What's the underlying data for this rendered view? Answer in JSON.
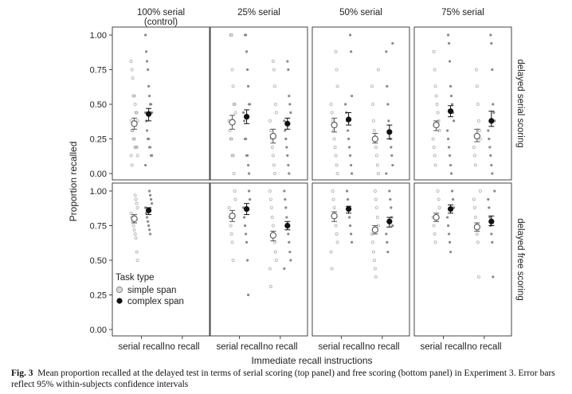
{
  "chart_data": {
    "type": "scatter",
    "ylabel": "Proportion recalled",
    "xlabel": "Immediate recall instructions",
    "ylim": [
      0.0,
      1.0
    ],
    "yticks": [
      "0.00",
      "0.25",
      "0.50",
      "0.75",
      "1.00"
    ],
    "categories": [
      "serial recall",
      "no recall"
    ],
    "columns": [
      "100% serial\n(control)",
      "25% serial",
      "50% serial",
      "75% serial"
    ],
    "rows": [
      "delayed serial scoring",
      "delayed free scoring"
    ],
    "legend": {
      "title": "Task type",
      "entries": [
        {
          "name": "simple span",
          "marker": "open-circle",
          "color": "#9a9a9a"
        },
        {
          "name": "complex span",
          "marker": "filled-circle",
          "color": "#111111"
        }
      ],
      "placement": "bottom-left of lower-left panel"
    },
    "grid": false,
    "series": [
      {
        "name": "simple span",
        "panel": [
          0,
          0
        ],
        "category": "serial recall",
        "mean": 0.36,
        "ci": [
          0.32,
          0.4
        ]
      },
      {
        "name": "complex span",
        "panel": [
          0,
          0
        ],
        "category": "serial recall",
        "mean": 0.43,
        "ci": [
          0.38,
          0.47
        ]
      },
      {
        "name": "simple span",
        "panel": [
          0,
          1
        ],
        "category": "serial recall",
        "mean": 0.37,
        "ci": [
          0.32,
          0.42
        ]
      },
      {
        "name": "complex span",
        "panel": [
          0,
          1
        ],
        "category": "serial recall",
        "mean": 0.41,
        "ci": [
          0.36,
          0.46
        ]
      },
      {
        "name": "simple span",
        "panel": [
          0,
          1
        ],
        "category": "no recall",
        "mean": 0.27,
        "ci": [
          0.22,
          0.32
        ]
      },
      {
        "name": "complex span",
        "panel": [
          0,
          1
        ],
        "category": "no recall",
        "mean": 0.36,
        "ci": [
          0.32,
          0.4
        ]
      },
      {
        "name": "simple span",
        "panel": [
          0,
          2
        ],
        "category": "serial recall",
        "mean": 0.35,
        "ci": [
          0.3,
          0.4
        ]
      },
      {
        "name": "complex span",
        "panel": [
          0,
          2
        ],
        "category": "serial recall",
        "mean": 0.39,
        "ci": [
          0.35,
          0.44
        ]
      },
      {
        "name": "simple span",
        "panel": [
          0,
          2
        ],
        "category": "no recall",
        "mean": 0.25,
        "ci": [
          0.22,
          0.29
        ]
      },
      {
        "name": "complex span",
        "panel": [
          0,
          2
        ],
        "category": "no recall",
        "mean": 0.3,
        "ci": [
          0.25,
          0.35
        ]
      },
      {
        "name": "simple span",
        "panel": [
          0,
          3
        ],
        "category": "serial recall",
        "mean": 0.35,
        "ci": [
          0.31,
          0.38
        ]
      },
      {
        "name": "complex span",
        "panel": [
          0,
          3
        ],
        "category": "serial recall",
        "mean": 0.45,
        "ci": [
          0.41,
          0.49
        ]
      },
      {
        "name": "simple span",
        "panel": [
          0,
          3
        ],
        "category": "no recall",
        "mean": 0.27,
        "ci": [
          0.23,
          0.32
        ]
      },
      {
        "name": "complex span",
        "panel": [
          0,
          3
        ],
        "category": "no recall",
        "mean": 0.38,
        "ci": [
          0.34,
          0.45
        ]
      },
      {
        "name": "simple span",
        "panel": [
          1,
          0
        ],
        "category": "serial recall",
        "mean": 0.8,
        "ci": [
          0.77,
          0.83
        ]
      },
      {
        "name": "complex span",
        "panel": [
          1,
          0
        ],
        "category": "serial recall",
        "mean": 0.86,
        "ci": [
          0.83,
          0.88
        ]
      },
      {
        "name": "simple span",
        "panel": [
          1,
          1
        ],
        "category": "serial recall",
        "mean": 0.82,
        "ci": [
          0.78,
          0.86
        ]
      },
      {
        "name": "complex span",
        "panel": [
          1,
          1
        ],
        "category": "serial recall",
        "mean": 0.87,
        "ci": [
          0.83,
          0.91
        ]
      },
      {
        "name": "simple span",
        "panel": [
          1,
          1
        ],
        "category": "no recall",
        "mean": 0.68,
        "ci": [
          0.64,
          0.71
        ]
      },
      {
        "name": "complex span",
        "panel": [
          1,
          1
        ],
        "category": "no recall",
        "mean": 0.75,
        "ci": [
          0.72,
          0.78
        ]
      },
      {
        "name": "simple span",
        "panel": [
          1,
          2
        ],
        "category": "serial recall",
        "mean": 0.82,
        "ci": [
          0.78,
          0.85
        ]
      },
      {
        "name": "complex span",
        "panel": [
          1,
          2
        ],
        "category": "serial recall",
        "mean": 0.87,
        "ci": [
          0.84,
          0.89
        ]
      },
      {
        "name": "simple span",
        "panel": [
          1,
          2
        ],
        "category": "no recall",
        "mean": 0.72,
        "ci": [
          0.69,
          0.75
        ]
      },
      {
        "name": "complex span",
        "panel": [
          1,
          2
        ],
        "category": "no recall",
        "mean": 0.78,
        "ci": [
          0.74,
          0.81
        ]
      },
      {
        "name": "simple span",
        "panel": [
          1,
          3
        ],
        "category": "serial recall",
        "mean": 0.81,
        "ci": [
          0.78,
          0.84
        ]
      },
      {
        "name": "complex span",
        "panel": [
          1,
          3
        ],
        "category": "serial recall",
        "mean": 0.87,
        "ci": [
          0.84,
          0.9
        ]
      },
      {
        "name": "simple span",
        "panel": [
          1,
          3
        ],
        "category": "no recall",
        "mean": 0.74,
        "ci": [
          0.71,
          0.77
        ]
      },
      {
        "name": "complex span",
        "panel": [
          1,
          3
        ],
        "category": "no recall",
        "mean": 0.78,
        "ci": [
          0.75,
          0.82
        ]
      }
    ],
    "raw_points": [
      {
        "panel": [
          0,
          0
        ],
        "category": "serial recall",
        "simple": [
          0.81,
          0.75,
          0.69,
          0.56,
          0.56,
          0.5,
          0.44,
          0.44,
          0.38,
          0.38,
          0.31,
          0.31,
          0.25,
          0.25,
          0.19,
          0.19,
          0.19,
          0.13,
          0.13,
          0.06
        ],
        "complex": [
          1.0,
          0.88,
          0.81,
          0.75,
          0.63,
          0.56,
          0.5,
          0.5,
          0.44,
          0.44,
          0.38,
          0.31,
          0.25,
          0.25,
          0.19,
          0.19,
          0.13,
          0.13,
          0.06
        ]
      },
      {
        "panel": [
          0,
          1
        ],
        "category": "serial recall",
        "simple": [
          1.0,
          1.0,
          0.75,
          0.63,
          0.5,
          0.5,
          0.44,
          0.38,
          0.31,
          0.25,
          0.25,
          0.13,
          0.13,
          0.0
        ],
        "complex": [
          1.0,
          1.0,
          0.88,
          0.75,
          0.63,
          0.5,
          0.5,
          0.44,
          0.38,
          0.25,
          0.25,
          0.13,
          0.13,
          0.06,
          0.0
        ]
      },
      {
        "panel": [
          0,
          1
        ],
        "category": "no recall",
        "simple": [
          0.81,
          0.75,
          0.63,
          0.5,
          0.44,
          0.38,
          0.31,
          0.25,
          0.19,
          0.13,
          0.06,
          0.0
        ],
        "complex": [
          0.81,
          0.75,
          0.56,
          0.5,
          0.44,
          0.38,
          0.31,
          0.25,
          0.19,
          0.13,
          0.06,
          0.0
        ]
      },
      {
        "panel": [
          0,
          2
        ],
        "category": "serial recall",
        "simple": [
          0.88,
          0.75,
          0.63,
          0.5,
          0.44,
          0.38,
          0.31,
          0.25,
          0.19,
          0.13,
          0.06,
          0.0
        ],
        "complex": [
          1.0,
          0.88,
          0.56,
          0.5,
          0.44,
          0.38,
          0.31,
          0.25,
          0.19,
          0.13,
          0.06,
          0.0
        ]
      },
      {
        "panel": [
          0,
          2
        ],
        "category": "no recall",
        "simple": [
          0.75,
          0.63,
          0.5,
          0.38,
          0.31,
          0.25,
          0.19,
          0.13,
          0.06,
          0.0
        ],
        "complex": [
          0.94,
          0.88,
          0.63,
          0.5,
          0.38,
          0.31,
          0.25,
          0.19,
          0.13,
          0.06,
          0.0
        ]
      },
      {
        "panel": [
          0,
          3
        ],
        "category": "serial recall",
        "simple": [
          0.88,
          0.75,
          0.63,
          0.56,
          0.5,
          0.44,
          0.38,
          0.31,
          0.25,
          0.19,
          0.13,
          0.06
        ],
        "complex": [
          1.0,
          0.94,
          0.81,
          0.63,
          0.56,
          0.5,
          0.44,
          0.38,
          0.31,
          0.25,
          0.19,
          0.13,
          0.06,
          0.0
        ]
      },
      {
        "panel": [
          0,
          3
        ],
        "category": "no recall",
        "simple": [
          0.75,
          0.63,
          0.5,
          0.38,
          0.31,
          0.25,
          0.19,
          0.13,
          0.06
        ],
        "complex": [
          1.0,
          0.94,
          0.75,
          0.5,
          0.44,
          0.38,
          0.31,
          0.25,
          0.19,
          0.13,
          0.06,
          0.0
        ]
      },
      {
        "panel": [
          1,
          0
        ],
        "category": "serial recall",
        "simple": [
          0.97,
          0.94,
          0.91,
          0.88,
          0.84,
          0.81,
          0.78,
          0.75,
          0.72,
          0.69,
          0.66,
          0.56,
          0.5
        ],
        "complex": [
          1.0,
          0.97,
          0.94,
          0.91,
          0.88,
          0.84,
          0.81,
          0.78,
          0.75,
          0.72,
          0.69
        ]
      },
      {
        "panel": [
          1,
          1
        ],
        "category": "serial recall",
        "simple": [
          1.0,
          0.94,
          0.88,
          0.81,
          0.75,
          0.69,
          0.63,
          0.5
        ],
        "complex": [
          1.0,
          0.94,
          0.88,
          0.81,
          0.75,
          0.69,
          0.63,
          0.5,
          0.25
        ]
      },
      {
        "panel": [
          1,
          1
        ],
        "category": "no recall",
        "simple": [
          1.0,
          0.94,
          0.88,
          0.81,
          0.75,
          0.69,
          0.63,
          0.56,
          0.5,
          0.44,
          0.31
        ],
        "complex": [
          1.0,
          0.94,
          0.88,
          0.81,
          0.75,
          0.69,
          0.63,
          0.56,
          0.5,
          0.44
        ]
      },
      {
        "panel": [
          1,
          2
        ],
        "category": "serial recall",
        "simple": [
          1.0,
          0.94,
          0.88,
          0.81,
          0.75,
          0.69,
          0.63,
          0.56,
          0.44
        ],
        "complex": [
          1.0,
          0.94,
          0.88,
          0.81,
          0.75,
          0.69,
          0.63
        ]
      },
      {
        "panel": [
          1,
          2
        ],
        "category": "no recall",
        "simple": [
          1.0,
          0.94,
          0.88,
          0.81,
          0.75,
          0.69,
          0.63,
          0.56,
          0.5,
          0.44,
          0.38
        ],
        "complex": [
          1.0,
          0.94,
          0.88,
          0.81,
          0.75,
          0.69,
          0.63,
          0.56
        ]
      },
      {
        "panel": [
          1,
          3
        ],
        "category": "serial recall",
        "simple": [
          1.0,
          0.94,
          0.88,
          0.81,
          0.75,
          0.69,
          0.63
        ],
        "complex": [
          1.0,
          0.94,
          0.88,
          0.81,
          0.75,
          0.69,
          0.63,
          0.56
        ]
      },
      {
        "panel": [
          1,
          3
        ],
        "category": "no recall",
        "simple": [
          1.0,
          0.94,
          0.88,
          0.81,
          0.75,
          0.69,
          0.63,
          0.38
        ],
        "complex": [
          1.0,
          0.94,
          0.88,
          0.81,
          0.75,
          0.69,
          0.63,
          0.38
        ]
      }
    ]
  },
  "caption": {
    "label": "Fig. 3",
    "text": "Mean proportion recalled at the delayed test in terms of serial scoring (top panel) and free scoring (bottom panel) in Experiment 3. Error bars reflect 95% within-subjects confidence intervals"
  }
}
